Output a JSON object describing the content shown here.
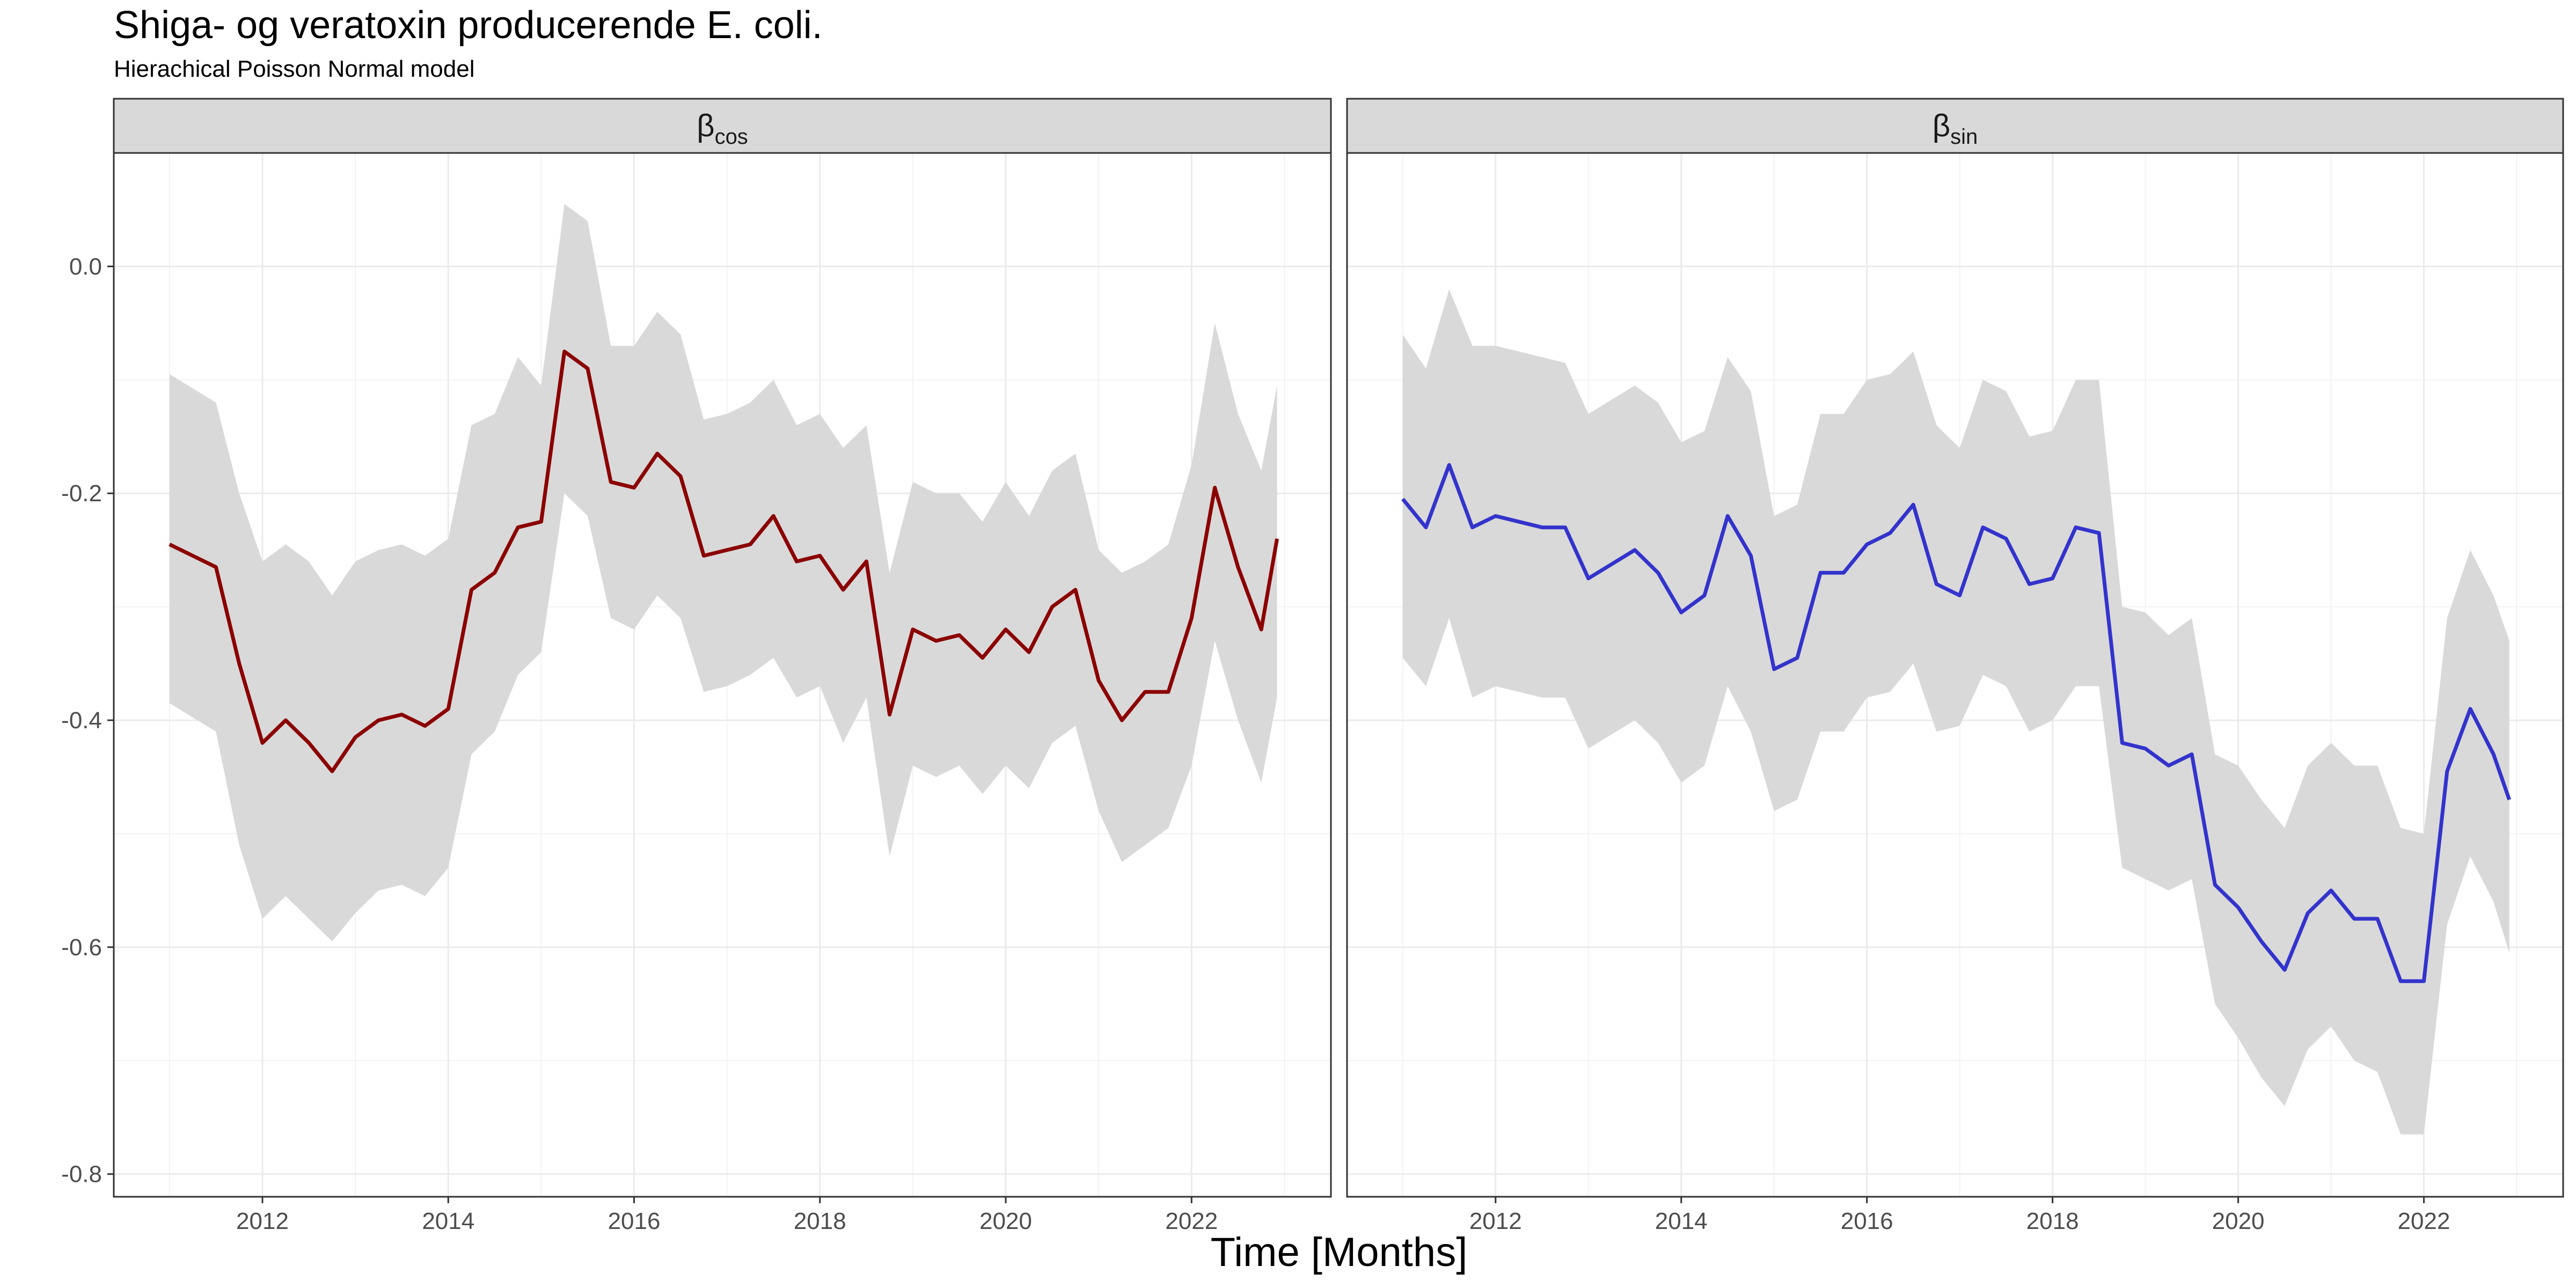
{
  "chart_data": {
    "type": "line",
    "title": "Shiga- og veratoxin producerende E. coli.",
    "subtitle": "Hierachical Poisson Normal model",
    "xlabel": "Time [Months]",
    "ylabel": "",
    "xlim": [
      2010.4,
      2023.5
    ],
    "ylim": [
      -0.82,
      0.1
    ],
    "x_ticks": [
      2012,
      2014,
      2016,
      2018,
      2020,
      2022
    ],
    "y_ticks": [
      0.0,
      -0.2,
      -0.4,
      -0.6,
      -0.8
    ],
    "y_tick_labels": [
      "0.0",
      "-0.2",
      "-0.4",
      "-0.6",
      "-0.8"
    ],
    "grid": true,
    "band_color": "#d9d9d9",
    "panels": [
      {
        "strip_label": "β",
        "strip_subscript": "cos",
        "color": "#8b0000",
        "x": [
          2011.0,
          2011.5,
          2011.75,
          2012.0,
          2012.25,
          2012.5,
          2012.75,
          2013.0,
          2013.25,
          2013.5,
          2013.75,
          2014.0,
          2014.25,
          2014.5,
          2014.75,
          2015.0,
          2015.25,
          2015.5,
          2015.75,
          2016.0,
          2016.25,
          2016.5,
          2016.75,
          2017.0,
          2017.25,
          2017.5,
          2017.75,
          2018.0,
          2018.25,
          2018.5,
          2018.75,
          2019.0,
          2019.25,
          2019.5,
          2019.75,
          2020.0,
          2020.25,
          2020.5,
          2020.75,
          2021.0,
          2021.25,
          2021.5,
          2021.75,
          2022.0,
          2022.25,
          2022.5,
          2022.75,
          2022.92
        ],
        "y": [
          -0.245,
          -0.265,
          -0.35,
          -0.42,
          -0.4,
          -0.42,
          -0.445,
          -0.415,
          -0.4,
          -0.395,
          -0.405,
          -0.39,
          -0.285,
          -0.27,
          -0.23,
          -0.225,
          -0.075,
          -0.09,
          -0.19,
          -0.195,
          -0.165,
          -0.185,
          -0.255,
          -0.25,
          -0.245,
          -0.22,
          -0.26,
          -0.255,
          -0.285,
          -0.26,
          -0.395,
          -0.32,
          -0.33,
          -0.325,
          -0.345,
          -0.32,
          -0.34,
          -0.3,
          -0.285,
          -0.365,
          -0.4,
          -0.375,
          -0.375,
          -0.31,
          -0.195,
          -0.265,
          -0.32,
          -0.24
        ],
        "lower": [
          -0.385,
          -0.41,
          -0.51,
          -0.575,
          -0.555,
          -0.575,
          -0.595,
          -0.57,
          -0.55,
          -0.545,
          -0.555,
          -0.53,
          -0.43,
          -0.41,
          -0.36,
          -0.34,
          -0.2,
          -0.22,
          -0.31,
          -0.32,
          -0.29,
          -0.31,
          -0.375,
          -0.37,
          -0.36,
          -0.345,
          -0.38,
          -0.37,
          -0.42,
          -0.38,
          -0.52,
          -0.44,
          -0.45,
          -0.44,
          -0.465,
          -0.44,
          -0.46,
          -0.42,
          -0.405,
          -0.48,
          -0.525,
          -0.51,
          -0.495,
          -0.44,
          -0.33,
          -0.4,
          -0.455,
          -0.38
        ],
        "upper": [
          -0.095,
          -0.12,
          -0.2,
          -0.26,
          -0.245,
          -0.26,
          -0.29,
          -0.26,
          -0.25,
          -0.245,
          -0.255,
          -0.24,
          -0.14,
          -0.13,
          -0.08,
          -0.105,
          0.055,
          0.04,
          -0.07,
          -0.07,
          -0.04,
          -0.06,
          -0.135,
          -0.13,
          -0.12,
          -0.1,
          -0.14,
          -0.13,
          -0.16,
          -0.14,
          -0.27,
          -0.19,
          -0.2,
          -0.2,
          -0.225,
          -0.19,
          -0.22,
          -0.18,
          -0.165,
          -0.25,
          -0.27,
          -0.26,
          -0.245,
          -0.175,
          -0.05,
          -0.13,
          -0.18,
          -0.105
        ]
      },
      {
        "strip_label": "β",
        "strip_subscript": "sin",
        "color": "#3333cc",
        "x": [
          2011.0,
          2011.25,
          2011.5,
          2011.75,
          2012.0,
          2012.5,
          2012.75,
          2013.0,
          2013.5,
          2013.75,
          2014.0,
          2014.25,
          2014.5,
          2014.75,
          2015.0,
          2015.25,
          2015.5,
          2015.75,
          2016.0,
          2016.25,
          2016.5,
          2016.75,
          2017.0,
          2017.25,
          2017.5,
          2017.75,
          2018.0,
          2018.25,
          2018.5,
          2018.75,
          2019.0,
          2019.25,
          2019.5,
          2019.75,
          2020.0,
          2020.25,
          2020.5,
          2020.75,
          2021.0,
          2021.25,
          2021.5,
          2021.75,
          2022.0,
          2022.25,
          2022.5,
          2022.75,
          2022.92
        ],
        "y": [
          -0.205,
          -0.23,
          -0.175,
          -0.23,
          -0.22,
          -0.23,
          -0.23,
          -0.275,
          -0.25,
          -0.27,
          -0.305,
          -0.29,
          -0.22,
          -0.255,
          -0.355,
          -0.345,
          -0.27,
          -0.27,
          -0.245,
          -0.235,
          -0.21,
          -0.28,
          -0.29,
          -0.23,
          -0.24,
          -0.28,
          -0.275,
          -0.23,
          -0.235,
          -0.42,
          -0.425,
          -0.44,
          -0.43,
          -0.545,
          -0.565,
          -0.595,
          -0.62,
          -0.57,
          -0.55,
          -0.575,
          -0.575,
          -0.63,
          -0.63,
          -0.445,
          -0.39,
          -0.43,
          -0.47
        ],
        "lower": [
          -0.345,
          -0.37,
          -0.31,
          -0.38,
          -0.37,
          -0.38,
          -0.38,
          -0.425,
          -0.4,
          -0.42,
          -0.455,
          -0.44,
          -0.37,
          -0.41,
          -0.48,
          -0.47,
          -0.41,
          -0.41,
          -0.38,
          -0.375,
          -0.35,
          -0.41,
          -0.405,
          -0.36,
          -0.37,
          -0.41,
          -0.4,
          -0.37,
          -0.37,
          -0.53,
          -0.54,
          -0.55,
          -0.54,
          -0.65,
          -0.68,
          -0.715,
          -0.74,
          -0.69,
          -0.67,
          -0.7,
          -0.71,
          -0.765,
          -0.765,
          -0.58,
          -0.52,
          -0.56,
          -0.605
        ],
        "upper": [
          -0.06,
          -0.09,
          -0.02,
          -0.07,
          -0.07,
          -0.08,
          -0.085,
          -0.13,
          -0.105,
          -0.12,
          -0.155,
          -0.145,
          -0.08,
          -0.11,
          -0.22,
          -0.21,
          -0.13,
          -0.13,
          -0.1,
          -0.095,
          -0.075,
          -0.14,
          -0.16,
          -0.1,
          -0.11,
          -0.15,
          -0.145,
          -0.1,
          -0.1,
          -0.3,
          -0.305,
          -0.325,
          -0.31,
          -0.43,
          -0.44,
          -0.47,
          -0.495,
          -0.44,
          -0.42,
          -0.44,
          -0.44,
          -0.495,
          -0.5,
          -0.31,
          -0.25,
          -0.29,
          -0.33
        ]
      }
    ]
  }
}
